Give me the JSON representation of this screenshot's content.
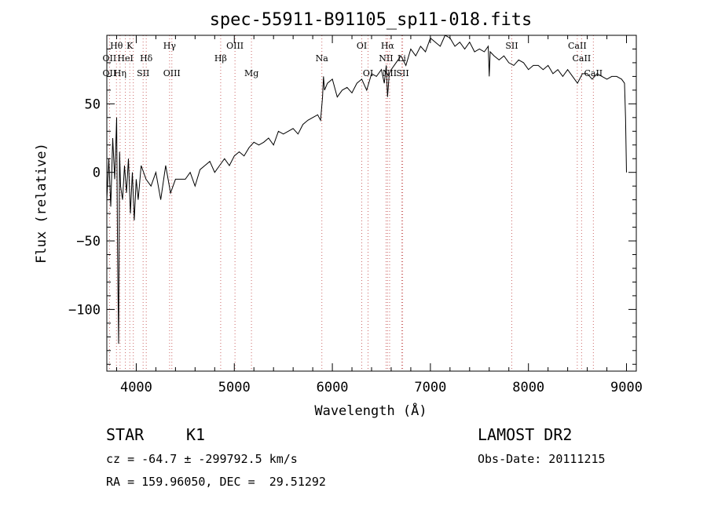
{
  "chart_data": {
    "type": "line",
    "title": "spec-55911-B91105_sp11-018.fits",
    "xlabel": "Wavelength (Å)",
    "ylabel": "Flux (relative)",
    "xlim": [
      3700,
      9100
    ],
    "ylim": [
      -145,
      100
    ],
    "x_ticks": [
      4000,
      5000,
      6000,
      7000,
      8000,
      9000
    ],
    "y_ticks": [
      50,
      0,
      -50,
      -100
    ],
    "x_tick_labels": [
      "4000",
      "5000",
      "6000",
      "7000",
      "8000",
      "9000"
    ],
    "y_tick_labels": [
      "50",
      "0",
      "−50",
      "−100"
    ],
    "grid": false,
    "series": [
      {
        "x": [
          3700,
          3720,
          3740,
          3760,
          3780,
          3800,
          3810,
          3820,
          3830,
          3840,
          3860,
          3880,
          3900,
          3920,
          3940,
          3960,
          3980,
          4000,
          4020,
          4050,
          4100,
          4150,
          4200,
          4250,
          4300,
          4350,
          4400,
          4450,
          4500,
          4550,
          4600,
          4650,
          4700,
          4750,
          4800,
          4850,
          4900,
          4950,
          5000,
          5050,
          5100,
          5150,
          5200,
          5250,
          5300,
          5350,
          5400,
          5450,
          5500,
          5550,
          5600,
          5650,
          5700,
          5750,
          5800,
          5850,
          5880,
          5900,
          5910,
          5920,
          5950,
          6000,
          6050,
          6100,
          6150,
          6200,
          6250,
          6300,
          6350,
          6400,
          6450,
          6500,
          6530,
          6550,
          6563,
          6580,
          6600,
          6650,
          6700,
          6750,
          6800,
          6850,
          6900,
          6950,
          7000,
          7050,
          7100,
          7150,
          7200,
          7250,
          7300,
          7350,
          7400,
          7450,
          7500,
          7550,
          7590,
          7600,
          7610,
          7650,
          7700,
          7750,
          7800,
          7850,
          7900,
          7950,
          8000,
          8050,
          8100,
          8150,
          8200,
          8250,
          8300,
          8350,
          8400,
          8450,
          8500,
          8550,
          8600,
          8650,
          8700,
          8750,
          8800,
          8850,
          8900,
          8950,
          8980,
          8990,
          9000
        ],
        "y": [
          -20,
          10,
          -25,
          25,
          -5,
          40,
          -60,
          -125,
          15,
          -10,
          -20,
          5,
          -15,
          10,
          -30,
          0,
          -35,
          -5,
          -20,
          5,
          -5,
          -10,
          0,
          -20,
          5,
          -15,
          -5,
          -5,
          -5,
          0,
          -10,
          2,
          5,
          8,
          0,
          5,
          10,
          5,
          12,
          15,
          12,
          18,
          22,
          20,
          22,
          25,
          20,
          30,
          28,
          30,
          32,
          28,
          35,
          38,
          40,
          42,
          38,
          55,
          70,
          60,
          65,
          68,
          55,
          60,
          62,
          58,
          65,
          68,
          60,
          72,
          70,
          75,
          65,
          78,
          55,
          72,
          75,
          80,
          85,
          78,
          90,
          85,
          92,
          88,
          98,
          95,
          92,
          100,
          98,
          92,
          95,
          90,
          95,
          88,
          90,
          88,
          92,
          70,
          88,
          85,
          82,
          85,
          80,
          78,
          82,
          80,
          75,
          78,
          78,
          75,
          78,
          72,
          75,
          70,
          75,
          70,
          65,
          72,
          72,
          68,
          72,
          70,
          68,
          70,
          70,
          68,
          65,
          40,
          0
        ]
      }
    ],
    "annotations": [
      {
        "text": "Hθ",
        "x": 3798,
        "row": 1
      },
      {
        "text": "K",
        "x": 3934,
        "row": 1
      },
      {
        "text": "OII",
        "x": 3727,
        "row": 2
      },
      {
        "text": "HeI",
        "x": 3889,
        "row": 2
      },
      {
        "text": "Hδ",
        "x": 4102,
        "row": 2
      },
      {
        "text": "OII",
        "x": 3727,
        "row": 3
      },
      {
        "text": "Hη",
        "x": 3835,
        "row": 3
      },
      {
        "text": "SII",
        "x": 4070,
        "row": 3
      },
      {
        "text": "Hγ",
        "x": 4340,
        "row": 1
      },
      {
        "text": "OIII",
        "x": 4363,
        "row": 3
      },
      {
        "text": "Hβ",
        "x": 4861,
        "row": 2
      },
      {
        "text": "OIII",
        "x": 5007,
        "row": 1
      },
      {
        "text": "Mg",
        "x": 5175,
        "row": 3
      },
      {
        "text": "Na",
        "x": 5893,
        "row": 2
      },
      {
        "text": "OI",
        "x": 6300,
        "row": 1
      },
      {
        "text": "OI",
        "x": 6364,
        "row": 3
      },
      {
        "text": "Hα",
        "x": 6563,
        "row": 1
      },
      {
        "text": "NII",
        "x": 6548,
        "row": 2
      },
      {
        "text": "NII",
        "x": 6584,
        "row": 3
      },
      {
        "text": "Li",
        "x": 6708,
        "row": 2
      },
      {
        "text": "SII",
        "x": 6717,
        "row": 3
      },
      {
        "text": "SII",
        "x": 7830,
        "row": 1
      },
      {
        "text": "CaII",
        "x": 8498,
        "row": 1
      },
      {
        "text": "CaII",
        "x": 8542,
        "row": 2
      },
      {
        "text": "CaII",
        "x": 8662,
        "row": 3
      }
    ],
    "line_markers": [
      3727,
      3798,
      3835,
      3889,
      3934,
      3970,
      4070,
      4102,
      4340,
      4363,
      4861,
      5007,
      5175,
      5893,
      6300,
      6364,
      6548,
      6563,
      6584,
      6708,
      6717,
      7830,
      8498,
      8542,
      8662
    ],
    "colors": {
      "spectrum": "#000000",
      "markers": "#cc6666",
      "axes": "#000000"
    }
  },
  "info": {
    "object_class": "STAR",
    "subclass": "K1",
    "survey": "LAMOST DR2",
    "cz_line": "cz = -64.7 ± -299792.5 km/s",
    "obs_date": "Obs-Date: 20111215",
    "coords": "RA = 159.96050, DEC =  29.51292"
  }
}
